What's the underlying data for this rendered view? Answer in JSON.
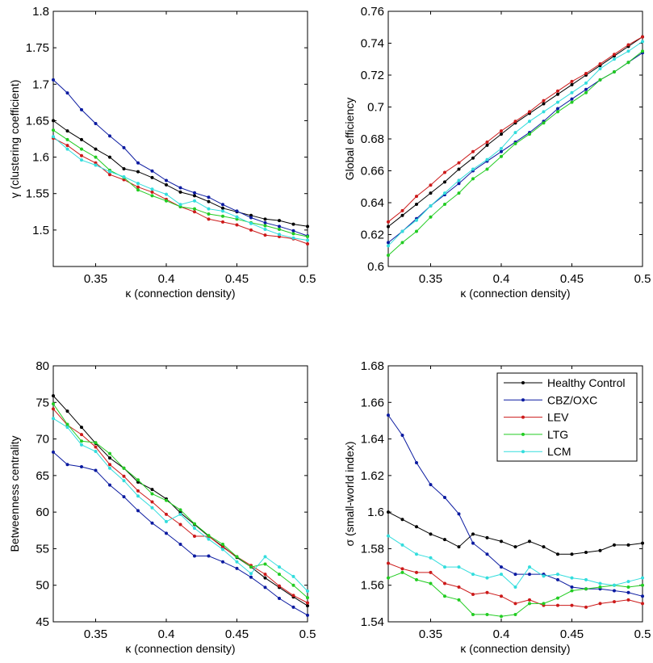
{
  "chart_data": [
    {
      "type": "line",
      "xlabel": "κ (connection density)",
      "ylabel": "γ (clustering coefficient)",
      "xlim": [
        0.32,
        0.5
      ],
      "ylim": [
        1.45,
        1.8
      ],
      "xticks": [
        "0.35",
        "0.4",
        "0.45",
        "0.5"
      ],
      "yticks": [
        "1.5",
        "1.55",
        "1.6",
        "1.65",
        "1.7",
        "1.75",
        "1.8"
      ],
      "x": [
        0.32,
        0.33,
        0.34,
        0.35,
        0.36,
        0.37,
        0.38,
        0.39,
        0.4,
        0.41,
        0.42,
        0.43,
        0.44,
        0.45,
        0.46,
        0.47,
        0.48,
        0.49,
        0.5
      ],
      "series": [
        {
          "name": "Healthy Control",
          "color": "#000000",
          "values": [
            1.65,
            1.636,
            1.624,
            1.611,
            1.6,
            1.584,
            1.58,
            1.572,
            1.562,
            1.552,
            1.547,
            1.539,
            1.53,
            1.525,
            1.52,
            1.515,
            1.513,
            1.508,
            1.505
          ]
        },
        {
          "name": "CBZ/OXC",
          "color": "#0a1aa0",
          "values": [
            1.706,
            1.688,
            1.665,
            1.646,
            1.629,
            1.613,
            1.592,
            1.581,
            1.568,
            1.558,
            1.551,
            1.545,
            1.535,
            1.526,
            1.517,
            1.51,
            1.505,
            1.499,
            1.492
          ]
        },
        {
          "name": "LEV",
          "color": "#cc1a1a",
          "values": [
            1.626,
            1.616,
            1.602,
            1.592,
            1.576,
            1.569,
            1.559,
            1.552,
            1.542,
            1.532,
            1.525,
            1.515,
            1.511,
            1.507,
            1.5,
            1.493,
            1.491,
            1.488,
            1.481
          ]
        },
        {
          "name": "LTG",
          "color": "#22cc22",
          "values": [
            1.637,
            1.624,
            1.611,
            1.6,
            1.582,
            1.572,
            1.555,
            1.547,
            1.54,
            1.532,
            1.529,
            1.522,
            1.519,
            1.515,
            1.51,
            1.506,
            1.501,
            1.495,
            1.491
          ]
        },
        {
          "name": "LCM",
          "color": "#33dddd",
          "values": [
            1.628,
            1.611,
            1.596,
            1.589,
            1.58,
            1.573,
            1.564,
            1.556,
            1.549,
            1.535,
            1.54,
            1.529,
            1.526,
            1.518,
            1.509,
            1.501,
            1.494,
            1.489,
            1.486
          ]
        }
      ]
    },
    {
      "type": "line",
      "xlabel": "κ (connection density)",
      "ylabel": "Global efficiency",
      "xlim": [
        0.32,
        0.5
      ],
      "ylim": [
        0.6,
        0.76
      ],
      "xticks": [
        "0.35",
        "0.4",
        "0.45",
        "0.5"
      ],
      "yticks": [
        "0.6",
        "0.62",
        "0.64",
        "0.66",
        "0.68",
        "0.7",
        "0.72",
        "0.74",
        "0.76"
      ],
      "x": [
        0.32,
        0.33,
        0.34,
        0.35,
        0.36,
        0.37,
        0.38,
        0.39,
        0.4,
        0.41,
        0.42,
        0.43,
        0.44,
        0.45,
        0.46,
        0.47,
        0.48,
        0.49,
        0.5
      ],
      "series": [
        {
          "name": "Healthy Control",
          "color": "#000000",
          "values": [
            0.625,
            0.632,
            0.639,
            0.646,
            0.653,
            0.661,
            0.668,
            0.676,
            0.683,
            0.69,
            0.696,
            0.702,
            0.708,
            0.714,
            0.72,
            0.726,
            0.732,
            0.738,
            0.744
          ]
        },
        {
          "name": "CBZ/OXC",
          "color": "#0a1aa0",
          "values": [
            0.615,
            0.622,
            0.63,
            0.638,
            0.645,
            0.652,
            0.66,
            0.666,
            0.672,
            0.678,
            0.684,
            0.691,
            0.699,
            0.705,
            0.711,
            0.717,
            0.722,
            0.728,
            0.734
          ]
        },
        {
          "name": "LEV",
          "color": "#cc1a1a",
          "values": [
            0.628,
            0.635,
            0.644,
            0.651,
            0.659,
            0.665,
            0.672,
            0.678,
            0.685,
            0.691,
            0.697,
            0.704,
            0.71,
            0.716,
            0.721,
            0.727,
            0.733,
            0.739,
            0.744
          ]
        },
        {
          "name": "LTG",
          "color": "#22cc22",
          "values": [
            0.607,
            0.615,
            0.622,
            0.631,
            0.639,
            0.646,
            0.655,
            0.661,
            0.669,
            0.677,
            0.683,
            0.69,
            0.697,
            0.703,
            0.709,
            0.717,
            0.722,
            0.728,
            0.735
          ]
        },
        {
          "name": "LCM",
          "color": "#33dddd",
          "values": [
            0.613,
            0.622,
            0.629,
            0.638,
            0.646,
            0.654,
            0.661,
            0.667,
            0.674,
            0.684,
            0.691,
            0.697,
            0.703,
            0.709,
            0.715,
            0.724,
            0.73,
            0.735,
            0.741
          ]
        }
      ]
    },
    {
      "type": "line",
      "xlabel": "κ (connection density)",
      "ylabel": "Betweenness centrality",
      "xlim": [
        0.32,
        0.5
      ],
      "ylim": [
        45,
        80
      ],
      "xticks": [
        "0.35",
        "0.4",
        "0.45",
        "0.5"
      ],
      "yticks": [
        "45",
        "50",
        "55",
        "60",
        "65",
        "70",
        "75",
        "80"
      ],
      "x": [
        0.32,
        0.33,
        0.34,
        0.35,
        0.36,
        0.37,
        0.38,
        0.39,
        0.4,
        0.41,
        0.42,
        0.43,
        0.44,
        0.45,
        0.46,
        0.47,
        0.48,
        0.49,
        0.5
      ],
      "series": [
        {
          "name": "Healthy Control",
          "color": "#000000",
          "values": [
            75.9,
            73.8,
            71.6,
            69.4,
            67.4,
            66.0,
            64.1,
            63.1,
            61.8,
            59.9,
            58.3,
            56.7,
            55.3,
            53.8,
            52.5,
            51.0,
            49.7,
            48.4,
            47.2
          ]
        },
        {
          "name": "CBZ/OXC",
          "color": "#0a1aa0",
          "values": [
            68.2,
            66.5,
            66.2,
            65.7,
            63.7,
            62.1,
            60.2,
            58.5,
            57.1,
            55.6,
            54.0,
            54.0,
            53.2,
            52.3,
            51.1,
            49.7,
            48.2,
            47.0,
            45.9
          ]
        },
        {
          "name": "LEV",
          "color": "#cc1a1a",
          "values": [
            74.1,
            71.9,
            70.6,
            68.9,
            66.5,
            64.9,
            62.9,
            61.4,
            59.7,
            58.3,
            56.7,
            56.7,
            55.2,
            53.9,
            52.7,
            51.5,
            49.9,
            48.6,
            47.6
          ]
        },
        {
          "name": "LTG",
          "color": "#22cc22",
          "values": [
            74.8,
            72.0,
            69.7,
            69.5,
            68.0,
            66.0,
            64.4,
            62.5,
            61.6,
            60.3,
            58.4,
            56.8,
            55.6,
            53.9,
            52.5,
            52.9,
            51.5,
            50.0,
            48.3
          ]
        },
        {
          "name": "LCM",
          "color": "#33dddd",
          "values": [
            72.8,
            71.6,
            69.2,
            68.3,
            66.0,
            64.3,
            62.2,
            60.6,
            58.7,
            59.7,
            57.8,
            56.3,
            54.9,
            53.2,
            51.6,
            53.9,
            52.5,
            51.2,
            49.2
          ]
        }
      ]
    },
    {
      "type": "line",
      "xlabel": "κ (connection density)",
      "ylabel": "σ (small-world index)",
      "xlim": [
        0.32,
        0.5
      ],
      "ylim": [
        1.54,
        1.68
      ],
      "xticks": [
        "0.35",
        "0.4",
        "0.45",
        "0.5"
      ],
      "yticks": [
        "1.54",
        "1.56",
        "1.58",
        "1.6",
        "1.62",
        "1.64",
        "1.66",
        "1.68"
      ],
      "legend": "top-right",
      "x": [
        0.32,
        0.33,
        0.34,
        0.35,
        0.36,
        0.37,
        0.38,
        0.39,
        0.4,
        0.41,
        0.42,
        0.43,
        0.44,
        0.45,
        0.46,
        0.47,
        0.48,
        0.49,
        0.5
      ],
      "series": [
        {
          "name": "Healthy Control",
          "color": "#000000",
          "values": [
            1.6,
            1.596,
            1.592,
            1.588,
            1.585,
            1.581,
            1.588,
            1.586,
            1.584,
            1.581,
            1.584,
            1.581,
            1.577,
            1.577,
            1.578,
            1.579,
            1.582,
            1.582,
            1.583
          ]
        },
        {
          "name": "CBZ/OXC",
          "color": "#0a1aa0",
          "values": [
            1.653,
            1.642,
            1.627,
            1.615,
            1.608,
            1.599,
            1.583,
            1.577,
            1.57,
            1.566,
            1.566,
            1.566,
            1.563,
            1.559,
            1.558,
            1.558,
            1.557,
            1.556,
            1.554
          ]
        },
        {
          "name": "LEV",
          "color": "#cc1a1a",
          "values": [
            1.572,
            1.569,
            1.567,
            1.567,
            1.561,
            1.559,
            1.555,
            1.556,
            1.554,
            1.55,
            1.552,
            1.549,
            1.549,
            1.549,
            1.548,
            1.55,
            1.551,
            1.552,
            1.55
          ]
        },
        {
          "name": "LTG",
          "color": "#22cc22",
          "values": [
            1.564,
            1.567,
            1.563,
            1.561,
            1.554,
            1.552,
            1.544,
            1.544,
            1.543,
            1.544,
            1.55,
            1.55,
            1.553,
            1.557,
            1.558,
            1.559,
            1.56,
            1.559,
            1.56
          ]
        },
        {
          "name": "LCM",
          "color": "#33dddd",
          "values": [
            1.587,
            1.582,
            1.577,
            1.575,
            1.57,
            1.57,
            1.566,
            1.564,
            1.566,
            1.559,
            1.57,
            1.565,
            1.566,
            1.564,
            1.563,
            1.561,
            1.56,
            1.562,
            1.564
          ]
        }
      ]
    }
  ]
}
